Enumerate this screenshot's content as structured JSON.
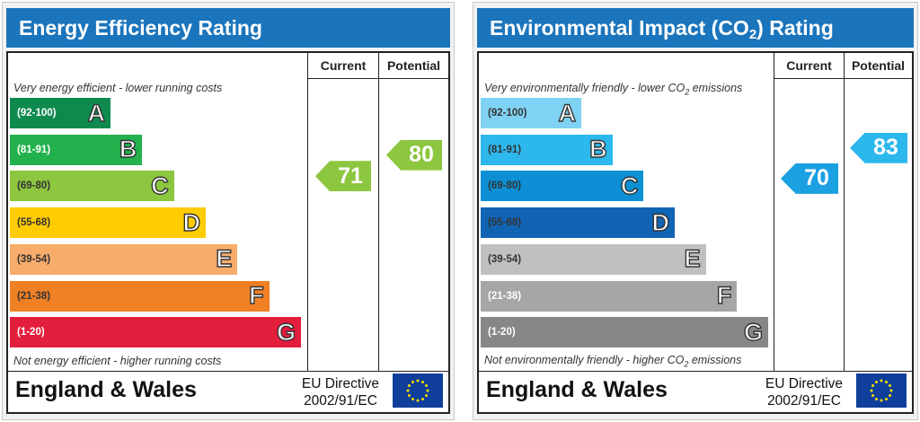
{
  "chart_data": [
    {
      "type": "bar",
      "title": "Energy Efficiency Rating",
      "columns": [
        "Current",
        "Potential"
      ],
      "top_caption": "Very energy efficient - lower running costs",
      "bottom_caption": "Not energy efficient - higher running costs",
      "bands": [
        {
          "range": "(92-100)",
          "letter": "A",
          "color": "#0e8a4f",
          "text_color": "#ffffff"
        },
        {
          "range": "(81-91)",
          "letter": "B",
          "color": "#23b14d",
          "text_color": "#ffffff"
        },
        {
          "range": "(69-80)",
          "letter": "C",
          "color": "#8dc63f",
          "text_color": "#333333"
        },
        {
          "range": "(55-68)",
          "letter": "D",
          "color": "#ffcc00",
          "text_color": "#333333"
        },
        {
          "range": "(39-54)",
          "letter": "E",
          "color": "#f7ac6b",
          "text_color": "#333333"
        },
        {
          "range": "(21-38)",
          "letter": "F",
          "color": "#f08024",
          "text_color": "#333333"
        },
        {
          "range": "(1-20)",
          "letter": "G",
          "color": "#e31d3c",
          "text_color": "#ffffff"
        }
      ],
      "current": {
        "value": 71,
        "display": "71",
        "band": "C",
        "color": "#8dc63f"
      },
      "potential": {
        "value": 80,
        "display": "80",
        "band": "C",
        "color": "#8dc63f"
      },
      "footer": {
        "region": "England & Wales",
        "directive_line1": "EU Directive",
        "directive_line2": "2002/91/EC"
      }
    },
    {
      "type": "bar",
      "title_main": "Environmental Impact (CO",
      "title_sub": "2",
      "title_end": ") Rating",
      "columns": [
        "Current",
        "Potential"
      ],
      "top_caption": "Very environmentally friendly - lower CO",
      "top_caption_sub": "2",
      "top_caption_end": " emissions",
      "bottom_caption": "Not environmentally friendly - higher CO",
      "bottom_caption_sub": "2",
      "bottom_caption_end": " emissions",
      "bands": [
        {
          "range": "(92-100)",
          "letter": "A",
          "color": "#7fd2f3",
          "text_color": "#333333"
        },
        {
          "range": "(81-91)",
          "letter": "B",
          "color": "#2db8ed",
          "text_color": "#333333"
        },
        {
          "range": "(69-80)",
          "letter": "C",
          "color": "#0c8fd4",
          "text_color": "#333333"
        },
        {
          "range": "(55-68)",
          "letter": "D",
          "color": "#1164b4",
          "text_color": "#333333"
        },
        {
          "range": "(39-54)",
          "letter": "E",
          "color": "#c0c0c0",
          "text_color": "#333333"
        },
        {
          "range": "(21-38)",
          "letter": "F",
          "color": "#a6a6a6",
          "text_color": "#ffffff"
        },
        {
          "range": "(1-20)",
          "letter": "G",
          "color": "#878787",
          "text_color": "#ffffff"
        }
      ],
      "current": {
        "value": 70,
        "display": "70",
        "band": "C",
        "color": "#1ba1e2"
      },
      "potential": {
        "value": 83,
        "display": "83",
        "band": "B",
        "color": "#2db8ed"
      },
      "footer": {
        "region": "England & Wales",
        "directive_line1": "EU Directive",
        "directive_line2": "2002/91/EC"
      }
    }
  ]
}
